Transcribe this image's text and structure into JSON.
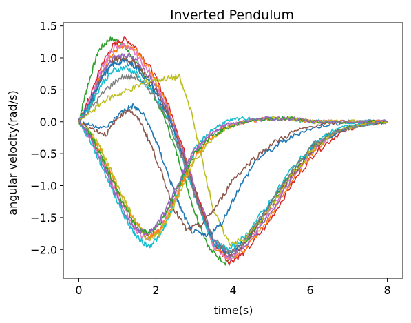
{
  "chart_data": {
    "type": "line",
    "title": "Inverted Pendulum",
    "xlabel": "time(s)",
    "ylabel": "angular velocity(rad/s)",
    "xlim": [
      -0.4,
      8.4
    ],
    "ylim": [
      -2.45,
      1.55
    ],
    "xticks": [
      0,
      2,
      4,
      6,
      8
    ],
    "xtick_labels": [
      "0",
      "2",
      "4",
      "6",
      "8"
    ],
    "yticks": [
      1.5,
      1.0,
      0.5,
      0.0,
      -0.5,
      -1.0,
      -1.5,
      -2.0
    ],
    "ytick_labels": [
      "1.5",
      "1.0",
      "0.5",
      "0.0",
      "−0.5",
      "−1.0",
      "−1.5",
      "−2.0"
    ],
    "grid": false,
    "legend": "none",
    "palette": [
      "#1f77b4",
      "#ff7f0e",
      "#2ca02c",
      "#d62728",
      "#9467bd",
      "#8c564b",
      "#e377c2",
      "#7f7f7f",
      "#bcbd22",
      "#17becf"
    ],
    "series": [
      {
        "color": "#2ca02c",
        "x": [
          0,
          0.2,
          0.5,
          0.8,
          1.1,
          1.4,
          1.8,
          2.2,
          2.6,
          3.0,
          3.4,
          3.8,
          4.2,
          4.8,
          5.4,
          6.0,
          6.6,
          7.2,
          8.0
        ],
        "y": [
          0.0,
          0.5,
          1.1,
          1.3,
          1.25,
          1.0,
          0.6,
          0.1,
          -0.6,
          -1.4,
          -2.0,
          -2.2,
          -2.0,
          -1.5,
          -0.9,
          -0.4,
          -0.15,
          -0.05,
          0.0
        ]
      },
      {
        "color": "#d62728",
        "x": [
          0,
          0.3,
          0.6,
          0.9,
          1.2,
          1.5,
          1.9,
          2.3,
          2.7,
          3.1,
          3.5,
          3.9,
          4.3,
          4.9,
          5.5,
          6.1,
          6.7,
          7.3,
          8.0
        ],
        "y": [
          0.0,
          0.4,
          0.9,
          1.2,
          1.3,
          1.15,
          0.8,
          0.3,
          -0.4,
          -1.2,
          -1.9,
          -2.2,
          -2.05,
          -1.6,
          -1.0,
          -0.5,
          -0.2,
          -0.05,
          0.0
        ]
      },
      {
        "color": "#ff7f0e",
        "x": [
          0,
          0.3,
          0.6,
          0.9,
          1.2,
          1.5,
          1.9,
          2.3,
          2.7,
          3.1,
          3.5,
          3.9,
          4.3,
          4.9,
          5.5,
          6.1,
          6.7,
          7.3,
          8.0
        ],
        "y": [
          0.0,
          0.3,
          0.8,
          1.1,
          1.2,
          1.1,
          0.75,
          0.25,
          -0.45,
          -1.25,
          -1.95,
          -2.15,
          -2.0,
          -1.55,
          -0.95,
          -0.45,
          -0.15,
          -0.05,
          0.0
        ]
      },
      {
        "color": "#e377c2",
        "x": [
          0,
          0.3,
          0.6,
          0.9,
          1.2,
          1.5,
          1.9,
          2.3,
          2.7,
          3.1,
          3.5,
          3.9,
          4.3,
          4.9,
          5.5,
          6.1,
          6.7,
          7.3,
          8.0
        ],
        "y": [
          0.0,
          0.35,
          0.85,
          1.15,
          1.2,
          1.05,
          0.7,
          0.2,
          -0.5,
          -1.3,
          -1.95,
          -2.15,
          -1.95,
          -1.45,
          -0.9,
          -0.4,
          -0.15,
          -0.05,
          0.0
        ]
      },
      {
        "color": "#9467bd",
        "x": [
          0,
          0.3,
          0.6,
          0.9,
          1.2,
          1.5,
          1.9,
          2.3,
          2.7,
          3.1,
          3.5,
          3.9,
          4.3,
          4.9,
          5.5,
          6.1,
          6.7,
          7.3,
          8.0
        ],
        "y": [
          0.0,
          0.3,
          0.75,
          1.0,
          1.05,
          0.95,
          0.65,
          0.2,
          -0.45,
          -1.2,
          -1.85,
          -2.1,
          -1.95,
          -1.5,
          -0.9,
          -0.4,
          -0.15,
          -0.05,
          0.0
        ]
      },
      {
        "color": "#8c564b",
        "x": [
          0,
          0.3,
          0.6,
          0.9,
          1.2,
          1.5,
          1.9,
          2.3,
          2.7,
          3.1,
          3.5,
          3.9,
          4.3,
          4.9,
          5.5,
          6.1,
          6.7,
          7.3,
          8.0
        ],
        "y": [
          0.0,
          0.25,
          0.7,
          0.95,
          1.0,
          0.9,
          0.6,
          0.15,
          -0.5,
          -1.25,
          -1.9,
          -2.1,
          -1.9,
          -1.4,
          -0.85,
          -0.4,
          -0.15,
          -0.05,
          0.0
        ]
      },
      {
        "color": "#1f77b4",
        "x": [
          0,
          0.3,
          0.6,
          0.9,
          1.2,
          1.5,
          1.9,
          2.3,
          2.7,
          3.1,
          3.5,
          3.9,
          4.3,
          4.9,
          5.5,
          6.1,
          6.7,
          7.3,
          8.0
        ],
        "y": [
          0.0,
          0.3,
          0.7,
          0.9,
          0.95,
          0.85,
          0.55,
          0.1,
          -0.55,
          -1.3,
          -1.9,
          -2.05,
          -1.85,
          -1.35,
          -0.8,
          -0.35,
          -0.15,
          -0.05,
          0.0
        ]
      },
      {
        "color": "#17becf",
        "x": [
          0,
          0.3,
          0.6,
          0.9,
          1.2,
          1.5,
          1.9,
          2.3,
          2.7,
          3.1,
          3.5,
          3.9,
          4.3,
          4.9,
          5.5,
          6.1,
          6.7,
          7.3,
          8.0
        ],
        "y": [
          0.0,
          0.25,
          0.6,
          0.8,
          0.85,
          0.75,
          0.45,
          0.05,
          -0.6,
          -1.35,
          -1.9,
          -2.0,
          -1.8,
          -1.3,
          -0.75,
          -0.35,
          -0.1,
          -0.05,
          0.0
        ]
      },
      {
        "color": "#bcbd22",
        "x": [
          0,
          0.3,
          0.7,
          1.1,
          1.5,
          1.9,
          2.3,
          2.6,
          2.9,
          3.2,
          3.5,
          3.9,
          4.3,
          4.9,
          5.5,
          6.1,
          6.7,
          7.3,
          8.0
        ],
        "y": [
          0.0,
          0.15,
          0.35,
          0.45,
          0.55,
          0.65,
          0.68,
          0.7,
          0.2,
          -0.6,
          -1.4,
          -1.9,
          -1.85,
          -1.4,
          -0.85,
          -0.4,
          -0.15,
          -0.05,
          0.0
        ]
      },
      {
        "color": "#7f7f7f",
        "x": [
          0,
          0.3,
          0.7,
          1.1,
          1.5,
          1.9,
          2.3,
          2.7,
          3.1,
          3.5,
          3.9,
          4.3,
          4.9,
          5.5,
          6.1,
          6.7,
          7.3,
          8.0
        ],
        "y": [
          0.0,
          0.2,
          0.5,
          0.7,
          0.7,
          0.45,
          0.05,
          -0.6,
          -1.3,
          -1.85,
          -2.05,
          -1.85,
          -1.35,
          -0.8,
          -0.35,
          -0.15,
          -0.05,
          0.0
        ]
      },
      {
        "color": "#1f77b4",
        "x": [
          0,
          0.3,
          0.7,
          1.1,
          1.4,
          1.7,
          2.0,
          2.3,
          2.6,
          2.9,
          3.3,
          3.7,
          4.1,
          4.6,
          5.2,
          5.8,
          6.4,
          7.0,
          8.0
        ],
        "y": [
          0.0,
          -0.05,
          -0.1,
          0.15,
          0.25,
          0.1,
          -0.3,
          -0.8,
          -1.3,
          -1.7,
          -1.8,
          -1.6,
          -1.1,
          -0.6,
          -0.35,
          -0.15,
          -0.05,
          0.0,
          0.0
        ]
      },
      {
        "color": "#8c564b",
        "x": [
          0,
          0.3,
          0.7,
          1.0,
          1.3,
          1.6,
          1.9,
          2.2,
          2.5,
          2.8,
          3.2,
          3.6,
          4.0,
          4.5,
          5.0,
          5.6,
          6.2,
          7.0,
          8.0
        ],
        "y": [
          0.0,
          -0.1,
          -0.2,
          0.05,
          0.2,
          0.0,
          -0.4,
          -0.9,
          -1.4,
          -1.7,
          -1.6,
          -1.3,
          -0.9,
          -0.6,
          -0.35,
          -0.15,
          -0.05,
          0.0,
          0.0
        ]
      },
      {
        "color": "#17becf",
        "x": [
          0,
          0.3,
          0.6,
          0.9,
          1.2,
          1.5,
          1.8,
          2.1,
          2.4,
          2.7,
          3.0,
          3.4,
          3.8,
          4.2,
          4.8,
          5.4,
          6.0,
          7.0,
          8.0
        ],
        "y": [
          0.0,
          -0.3,
          -0.7,
          -1.1,
          -1.5,
          -1.8,
          -1.95,
          -1.8,
          -1.4,
          -0.9,
          -0.45,
          -0.15,
          0.0,
          0.05,
          0.05,
          0.05,
          0.0,
          0.0,
          0.0
        ]
      },
      {
        "color": "#e377c2",
        "x": [
          0,
          0.3,
          0.6,
          0.9,
          1.2,
          1.5,
          1.8,
          2.1,
          2.4,
          2.7,
          3.0,
          3.4,
          3.8,
          4.3,
          4.9,
          5.5,
          6.1,
          7.0,
          8.0
        ],
        "y": [
          0.0,
          -0.25,
          -0.6,
          -1.0,
          -1.4,
          -1.7,
          -1.85,
          -1.7,
          -1.3,
          -0.85,
          -0.45,
          -0.2,
          -0.05,
          0.0,
          0.05,
          0.05,
          0.0,
          0.0,
          0.0
        ]
      },
      {
        "color": "#ff7f0e",
        "x": [
          0,
          0.3,
          0.6,
          0.9,
          1.2,
          1.5,
          1.8,
          2.1,
          2.4,
          2.7,
          3.0,
          3.4,
          3.8,
          4.3,
          4.9,
          5.5,
          6.1,
          7.0,
          8.0
        ],
        "y": [
          0.0,
          -0.2,
          -0.5,
          -0.9,
          -1.3,
          -1.6,
          -1.8,
          -1.7,
          -1.35,
          -0.95,
          -0.55,
          -0.25,
          -0.1,
          0.0,
          0.05,
          0.05,
          0.0,
          0.0,
          0.0
        ]
      },
      {
        "color": "#bcbd22",
        "x": [
          0,
          0.3,
          0.6,
          0.9,
          1.2,
          1.5,
          1.8,
          2.1,
          2.4,
          2.7,
          3.0,
          3.4,
          3.8,
          4.3,
          4.9,
          5.5,
          6.1,
          7.0,
          8.0
        ],
        "y": [
          0.0,
          -0.15,
          -0.45,
          -0.85,
          -1.25,
          -1.6,
          -1.85,
          -1.75,
          -1.4,
          -1.0,
          -0.6,
          -0.3,
          -0.1,
          0.0,
          0.05,
          0.05,
          0.0,
          0.0,
          0.0
        ]
      },
      {
        "color": "#2ca02c",
        "x": [
          0,
          0.3,
          0.6,
          0.9,
          1.2,
          1.5,
          1.8,
          2.1,
          2.4,
          2.7,
          3.0,
          3.4,
          3.8,
          4.3,
          4.9,
          5.5,
          6.1,
          7.0,
          8.0
        ],
        "y": [
          0.0,
          -0.2,
          -0.55,
          -0.95,
          -1.35,
          -1.65,
          -1.75,
          -1.6,
          -1.25,
          -0.85,
          -0.5,
          -0.25,
          -0.1,
          0.0,
          0.05,
          0.05,
          0.0,
          0.0,
          0.0
        ]
      },
      {
        "color": "#9467bd",
        "x": [
          0,
          0.3,
          0.6,
          0.9,
          1.2,
          1.5,
          1.8,
          2.1,
          2.4,
          2.7,
          3.0,
          3.4,
          3.8,
          4.3,
          4.9,
          5.5,
          6.1,
          7.0,
          8.0
        ],
        "y": [
          0.0,
          -0.25,
          -0.65,
          -1.05,
          -1.45,
          -1.7,
          -1.75,
          -1.55,
          -1.2,
          -0.8,
          -0.45,
          -0.2,
          -0.05,
          0.0,
          0.05,
          0.05,
          0.0,
          0.0,
          0.0
        ]
      }
    ]
  }
}
